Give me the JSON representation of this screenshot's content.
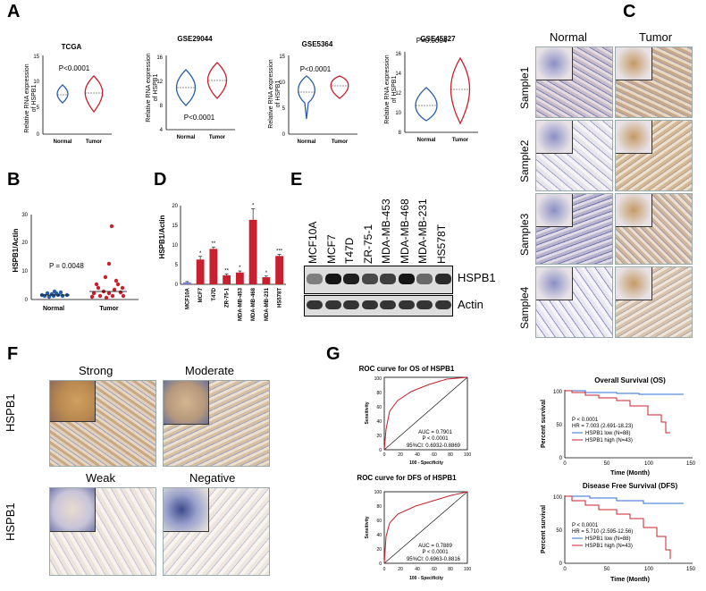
{
  "panels": {
    "A": "A",
    "B": "B",
    "C": "C",
    "D": "D",
    "E": "E",
    "F": "F",
    "G": "G"
  },
  "panelA": {
    "ylabel_line1": "Relative RNA expression",
    "ylabel_line2": "of HSPB1",
    "violins": [
      {
        "title": "TCGA",
        "p": "P<0.0001",
        "yticks": [
          "0",
          "5",
          "10",
          "15"
        ]
      },
      {
        "title": "GSE29044",
        "p": "P<0.0001",
        "yticks": [
          "4",
          "8",
          "12",
          "16"
        ]
      },
      {
        "title": "GSE5364",
        "p": "P<0.0001",
        "yticks": [
          "0",
          "5",
          "10",
          "15"
        ]
      },
      {
        "title": "GSE45827",
        "p": "P=0.0004",
        "yticks": [
          "8",
          "10",
          "12",
          "14",
          "16"
        ]
      }
    ],
    "xcats": [
      "Normal",
      "Tumor"
    ]
  },
  "panelB": {
    "ylabel": "HSPB1/Actin",
    "p": "P = 0.0048",
    "yticks": [
      "0",
      "10",
      "20",
      "30"
    ],
    "xcats": [
      "Normal",
      "Tumor"
    ]
  },
  "panelC": {
    "col_normal": "Normal",
    "col_tumor": "Tumor",
    "rows": [
      "Sample1",
      "Sample2",
      "Sample3",
      "Sample4"
    ]
  },
  "panelE": {
    "lines": [
      "MCF10A",
      "MCF7",
      "T47D",
      "ZR-75-1",
      "MDA-MB-453",
      "MDA-MB-468",
      "MDA-MB-231",
      "HS578T"
    ],
    "band1": "HSPB1",
    "band2": "Actin"
  },
  "panelF": {
    "strong": "Strong",
    "moderate": "Moderate",
    "weak": "Weak",
    "negative": "Negative",
    "rowlabel": "HSPB1"
  },
  "panelG": {
    "roc_os_title": "ROC curve for OS of HSPB1",
    "roc_dfs_title": "ROC curve for DFS of HSPB1",
    "roc_xlabel": "100 - Specificity",
    "roc_ylabel": "Sensitivity",
    "roc_ticks": [
      "0",
      "20",
      "40",
      "60",
      "80",
      "100"
    ],
    "roc_os_stats": [
      "AUC = 0.7901",
      "P < 0.0001",
      "95%CI: 0.6932-0.8869"
    ],
    "roc_dfs_stats": [
      "AUC = 0.7889",
      "P < 0.0001",
      "95%CI: 0.6963-0.8816"
    ],
    "os_title": "Overall Survival (OS)",
    "dfs_title": "Disease Free Survival (DFS)",
    "km_ylabel": "Percent survival",
    "km_xlabel": "Time (Month)",
    "km_xticks": [
      "0",
      "50",
      "100",
      "150"
    ],
    "km_yticks": [
      "0",
      "50",
      "100"
    ],
    "os_stats": [
      "P < 0.0001",
      "HR = 7.003 (2.691-18.23)"
    ],
    "dfs_stats": [
      "P < 0.0001",
      "HR = 5.710 (2.595-12.56)"
    ],
    "legend_low": "HSPB1 low  (N=88)",
    "legend_high": "HSPB1 high (N=43)"
  },
  "colors": {
    "normal": "#2a5fa8",
    "tumor": "#c8202e",
    "low": "#2f6fd0",
    "high": "#c8202e"
  },
  "chart_data": [
    {
      "type": "bar",
      "ylabel": "HSPB1/Actin",
      "yticks": [
        0,
        5,
        10,
        15,
        20
      ],
      "ylim": [
        0,
        20
      ],
      "categories": [
        "MCF10A",
        "MCF7",
        "T47D",
        "ZR-75-1",
        "MDA-MB-453",
        "MDA-MB-468",
        "MDA-MB-231",
        "HS578T"
      ],
      "values": [
        0.5,
        6.3,
        9.0,
        2.3,
        3.0,
        16.4,
        1.8,
        7.2
      ],
      "errors": [
        0.2,
        0.8,
        0.5,
        0.3,
        0.4,
        2.8,
        0.3,
        0.4
      ],
      "significance": [
        "",
        "*",
        "**",
        "**",
        "*",
        "*",
        "*",
        "***"
      ]
    }
  ]
}
